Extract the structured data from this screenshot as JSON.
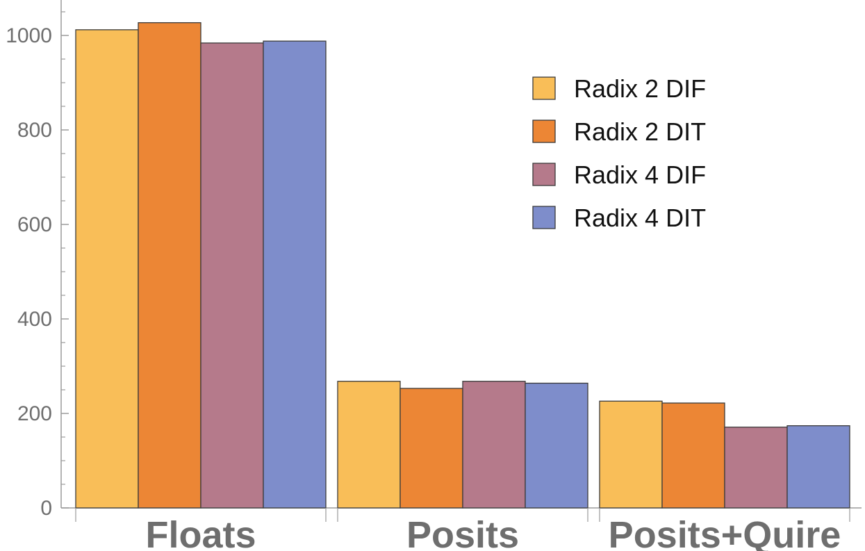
{
  "chart_data": {
    "type": "bar",
    "title": "",
    "xlabel": "",
    "ylabel": "",
    "categories": [
      "Floats",
      "Posits",
      "Posits+Quire"
    ],
    "series": [
      {
        "name": "Radix 2 DIF",
        "color": "#f9be58",
        "values": [
          1012,
          268,
          226
        ]
      },
      {
        "name": "Radix 2 DIT",
        "color": "#ec8635",
        "values": [
          1027,
          253,
          222
        ]
      },
      {
        "name": "Radix 4 DIF",
        "color": "#b57a8b",
        "values": [
          984,
          268,
          171
        ]
      },
      {
        "name": "Radix 4 DIT",
        "color": "#7e8dcb",
        "values": [
          988,
          264,
          174
        ]
      }
    ],
    "ylim": [
      0,
      1075
    ],
    "yticks": [
      0,
      200,
      400,
      600,
      800,
      1000
    ],
    "grid": false,
    "legend_position": "top-right",
    "colors": {
      "axis": "#9a9a9a",
      "tick_text": "#6e6e6e",
      "bar_stroke": "#3a3a3a",
      "legend_text": "#111111"
    }
  }
}
